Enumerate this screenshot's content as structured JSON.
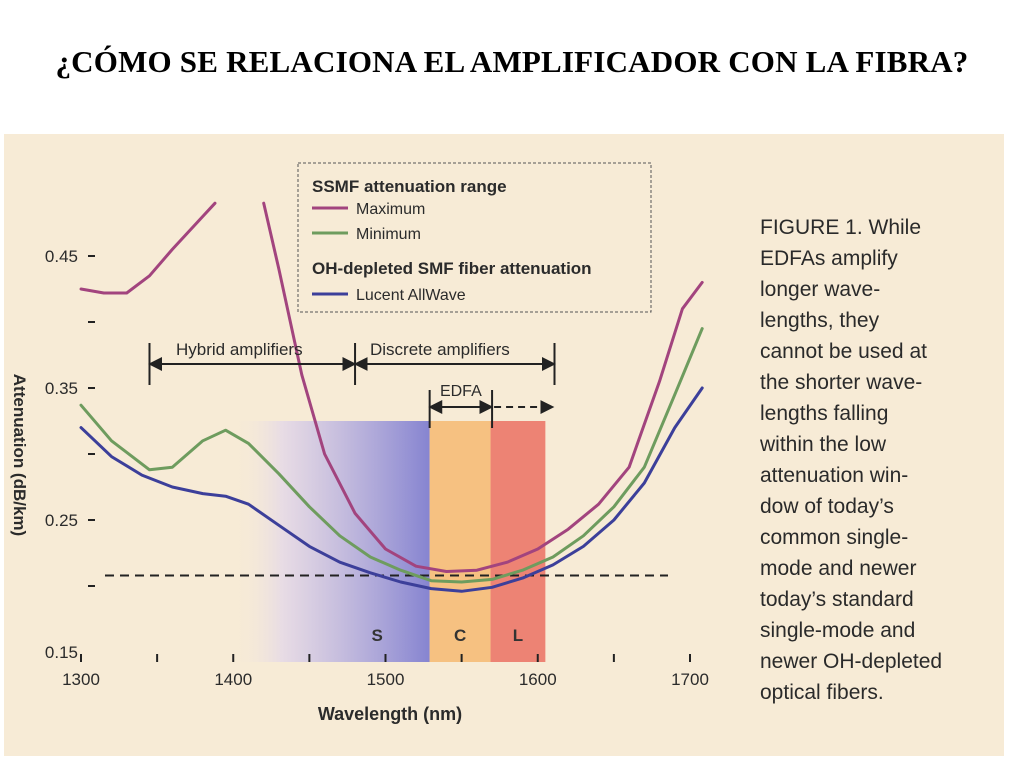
{
  "slide": {
    "title": "¿CÓMO SE RELACIONA EL AMPLIFICADOR CON LA FIBRA?"
  },
  "caption_lines": [
    "FIGURE 1. While",
    "EDFAs amplify",
    "longer wave-",
    "lengths, they",
    "cannot be used at",
    "the shorter wave-",
    "lengths falling",
    "within the low",
    "attenuation win-",
    "dow of today’s",
    "common single-",
    "mode and newer",
    "today’s standard",
    "single-mode and",
    "newer OH-depleted",
    "optical fibers."
  ],
  "chart_data": {
    "type": "line",
    "xlabel": "Wavelength (nm)",
    "ylabel": "Attenuation (dB/km)",
    "xlim": [
      1300,
      1700
    ],
    "ylim": [
      0.15,
      0.45
    ],
    "x_ticks": [
      1300,
      1400,
      1500,
      1600,
      1700
    ],
    "y_ticks": [
      0.15,
      0.25,
      0.35,
      0.45
    ],
    "legend": {
      "group1_title": "SSMF attenuation range",
      "group2_title": "OH-depleted SMF fiber attenuation",
      "position": "top-center"
    },
    "series": [
      {
        "name": "Maximum",
        "color": "#a2447e",
        "points": [
          [
            1300,
            0.425
          ],
          [
            1315,
            0.422
          ],
          [
            1330,
            0.422
          ],
          [
            1345,
            0.435
          ],
          [
            1360,
            0.455
          ],
          [
            1380,
            0.48
          ],
          [
            1388,
            0.49
          ],
          null,
          [
            1420,
            0.49
          ],
          [
            1430,
            0.44
          ],
          [
            1445,
            0.36
          ],
          [
            1460,
            0.3
          ],
          [
            1480,
            0.255
          ],
          [
            1500,
            0.228
          ],
          [
            1520,
            0.215
          ],
          [
            1540,
            0.211
          ],
          [
            1560,
            0.212
          ],
          [
            1580,
            0.218
          ],
          [
            1600,
            0.228
          ],
          [
            1620,
            0.243
          ],
          [
            1640,
            0.262
          ],
          [
            1660,
            0.29
          ],
          [
            1680,
            0.355
          ],
          [
            1695,
            0.41
          ],
          [
            1708,
            0.43
          ]
        ]
      },
      {
        "name": "Minimum",
        "color": "#6e9c5e",
        "points": [
          [
            1300,
            0.337
          ],
          [
            1320,
            0.31
          ],
          [
            1345,
            0.288
          ],
          [
            1360,
            0.29
          ],
          [
            1380,
            0.31
          ],
          [
            1395,
            0.318
          ],
          [
            1410,
            0.308
          ],
          [
            1430,
            0.285
          ],
          [
            1450,
            0.26
          ],
          [
            1470,
            0.238
          ],
          [
            1490,
            0.222
          ],
          [
            1510,
            0.212
          ],
          [
            1530,
            0.204
          ],
          [
            1550,
            0.203
          ],
          [
            1570,
            0.205
          ],
          [
            1590,
            0.212
          ],
          [
            1610,
            0.222
          ],
          [
            1630,
            0.238
          ],
          [
            1650,
            0.26
          ],
          [
            1670,
            0.29
          ],
          [
            1690,
            0.345
          ],
          [
            1708,
            0.395
          ]
        ]
      },
      {
        "name": "Lucent AllWave",
        "color": "#3c3f9a",
        "points": [
          [
            1300,
            0.32
          ],
          [
            1320,
            0.298
          ],
          [
            1340,
            0.284
          ],
          [
            1360,
            0.275
          ],
          [
            1380,
            0.27
          ],
          [
            1395,
            0.268
          ],
          [
            1410,
            0.262
          ],
          [
            1430,
            0.246
          ],
          [
            1450,
            0.23
          ],
          [
            1470,
            0.218
          ],
          [
            1490,
            0.21
          ],
          [
            1510,
            0.203
          ],
          [
            1530,
            0.198
          ],
          [
            1550,
            0.196
          ],
          [
            1570,
            0.199
          ],
          [
            1590,
            0.206
          ],
          [
            1610,
            0.216
          ],
          [
            1630,
            0.23
          ],
          [
            1650,
            0.25
          ],
          [
            1670,
            0.278
          ],
          [
            1690,
            0.32
          ],
          [
            1708,
            0.35
          ]
        ]
      }
    ],
    "reference_line": {
      "y": 0.208,
      "style": "dashed"
    },
    "bands": [
      {
        "label": "S",
        "x": [
          1460,
          1529
        ],
        "color": "#7c7bd0",
        "gradient_from": 1400
      },
      {
        "label": "C",
        "x": [
          1529,
          1569
        ],
        "color": "#f5bd79"
      },
      {
        "label": "L",
        "x": [
          1569,
          1605
        ],
        "color": "#ec7a6b"
      }
    ],
    "annotations": [
      {
        "text": "Hybrid amplifiers",
        "x_range": [
          1345,
          1480
        ]
      },
      {
        "text": "Discrete amplifiers",
        "x_range": [
          1480,
          1611
        ]
      },
      {
        "text": "EDFA",
        "x_range": [
          1529,
          1570
        ],
        "extended_to": 1610
      }
    ]
  }
}
